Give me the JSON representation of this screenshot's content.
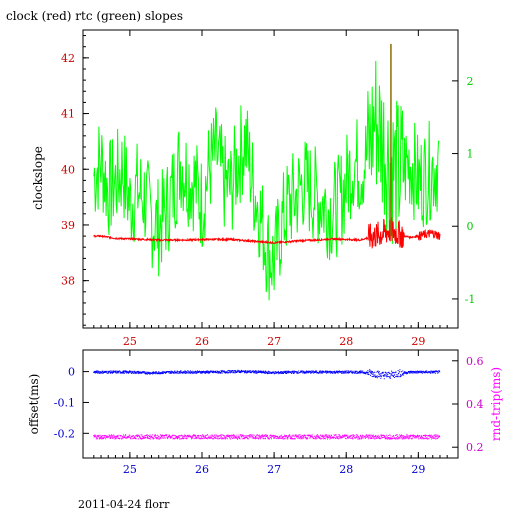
{
  "chart_data": [
    {
      "type": "line",
      "title": "clock (red) rtc (green) slopes",
      "xlabel": "",
      "ylabel": "clockslope",
      "xlim": [
        24.35,
        29.55
      ],
      "ylim": [
        37.15,
        42.5
      ],
      "x_ticks": [
        25,
        26,
        27,
        28,
        29
      ],
      "x_tick_labels": [
        "25",
        "26",
        "27",
        "28",
        "29"
      ],
      "y_ticks": [
        38,
        39,
        40,
        41,
        42
      ],
      "y_tick_labels": [
        "38",
        "39",
        "40",
        "41",
        "42"
      ],
      "y2lim": [
        -1.4,
        2.7
      ],
      "y2_ticks": [
        -1,
        0,
        1,
        2
      ],
      "y2_tick_labels": [
        "-1",
        "0",
        "1",
        "2"
      ],
      "colors": {
        "clock": "#ff0000",
        "rtc": "#00ff00",
        "left_axis": "#cc0000",
        "right_axis": "#00cc00",
        "frame": "#000000"
      },
      "series": [
        {
          "name": "clock",
          "axis": "left",
          "x": [
            24.5,
            24.6,
            24.8,
            25.0,
            25.2,
            25.4,
            25.6,
            25.8,
            26.0,
            26.2,
            26.4,
            26.6,
            26.8,
            27.0,
            27.2,
            27.4,
            27.6,
            27.8,
            28.0,
            28.2,
            28.3,
            28.4,
            28.5,
            28.6,
            28.7,
            28.8,
            28.9,
            29.0,
            29.1,
            29.2,
            29.3
          ],
          "y": [
            38.8,
            38.8,
            38.76,
            38.75,
            38.74,
            38.73,
            38.73,
            38.73,
            38.74,
            38.74,
            38.74,
            38.72,
            38.7,
            38.68,
            38.7,
            38.72,
            38.73,
            38.75,
            38.74,
            38.73,
            38.77,
            38.8,
            38.85,
            38.9,
            38.86,
            38.8,
            38.78,
            38.8,
            38.83,
            38.85,
            38.8
          ]
        },
        {
          "name": "rtc",
          "axis": "right",
          "x": [
            24.5,
            24.6,
            24.7,
            24.8,
            24.9,
            25.0,
            25.1,
            25.2,
            25.3,
            25.4,
            25.5,
            25.6,
            25.7,
            25.8,
            25.9,
            26.0,
            26.1,
            26.2,
            26.3,
            26.4,
            26.5,
            26.6,
            26.7,
            26.8,
            26.9,
            27.0,
            27.1,
            27.2,
            27.3,
            27.4,
            27.5,
            27.6,
            27.7,
            27.8,
            27.9,
            28.0,
            28.1,
            28.2,
            28.3,
            28.4,
            28.5,
            28.6,
            28.7,
            28.8,
            28.9,
            29.0,
            29.1,
            29.2,
            29.3
          ],
          "y": [
            0.7,
            0.9,
            0.5,
            0.6,
            0.8,
            0.3,
            0.5,
            0.4,
            0.1,
            0.0,
            0.2,
            0.5,
            0.9,
            0.7,
            0.6,
            0.3,
            0.8,
            1.0,
            0.6,
            0.5,
            0.9,
            1.2,
            0.6,
            0.2,
            -0.3,
            -0.5,
            0.0,
            0.3,
            0.4,
            0.6,
            0.5,
            0.4,
            0.3,
            0.2,
            0.3,
            0.6,
            0.9,
            0.8,
            1.0,
            1.5,
            1.2,
            0.9,
            0.7,
            0.8,
            0.9,
            0.6,
            0.7,
            0.8,
            0.9
          ]
        }
      ]
    },
    {
      "type": "scatter",
      "title": "",
      "xlabel": "",
      "ylabel": "offset(ms)",
      "y2label": "rnd-trip(ms)",
      "xlim": [
        24.35,
        29.55
      ],
      "ylim": [
        -0.28,
        0.07
      ],
      "x_ticks": [
        25,
        26,
        27,
        28,
        29
      ],
      "x_tick_labels": [
        "25",
        "26",
        "27",
        "28",
        "29"
      ],
      "y_ticks": [
        0,
        -0.1,
        -0.2
      ],
      "y_tick_labels": [
        "0",
        "-0.1",
        "-0.2"
      ],
      "y2lim": [
        0.15,
        0.65
      ],
      "y2_ticks": [
        0.2,
        0.4,
        0.6
      ],
      "y2_tick_labels": [
        "0.2",
        "0.4",
        "0.6"
      ],
      "colors": {
        "offset": "#0000ff",
        "roundtrip": "#ff00ff",
        "frame": "#000000"
      },
      "series": [
        {
          "name": "offset",
          "axis": "left",
          "x": [
            24.5,
            24.8,
            25.0,
            25.3,
            25.6,
            25.9,
            26.2,
            26.5,
            26.8,
            27.0,
            27.3,
            27.6,
            27.9,
            28.2,
            28.4,
            28.5,
            28.6,
            28.7,
            28.9,
            29.1,
            29.3
          ],
          "y": [
            0.0,
            0.0,
            0.0,
            -0.003,
            0.0,
            0.0,
            0.0,
            0.002,
            0.0,
            -0.002,
            0.0,
            0.0,
            0.0,
            0.0,
            -0.005,
            -0.01,
            -0.01,
            -0.005,
            0.0,
            0.0,
            0.0
          ]
        },
        {
          "name": "roundtrip",
          "axis": "right",
          "x": [
            24.5,
            24.8,
            25.0,
            25.3,
            25.6,
            25.9,
            26.2,
            26.5,
            26.8,
            27.0,
            27.3,
            27.6,
            27.9,
            28.2,
            28.5,
            28.8,
            29.1,
            29.3
          ],
          "y": [
            0.25,
            0.25,
            0.25,
            0.25,
            0.25,
            0.25,
            0.25,
            0.25,
            0.25,
            0.25,
            0.25,
            0.25,
            0.25,
            0.25,
            0.25,
            0.25,
            0.25,
            0.25
          ]
        }
      ]
    }
  ],
  "footer": {
    "text": "2011-04-24 florr"
  }
}
